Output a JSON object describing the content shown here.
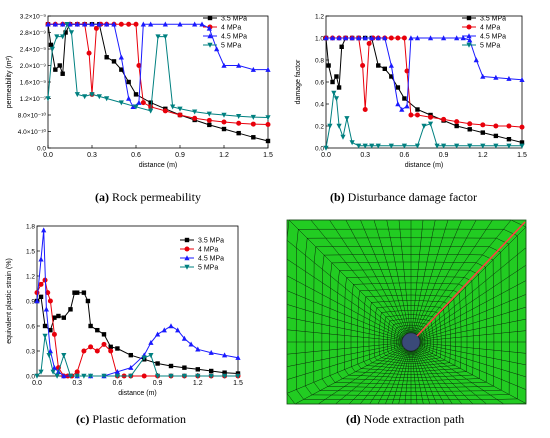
{
  "colors": {
    "3.5 MPa": "#000000",
    "4 MPa": "#e8000b",
    "4.5 MPa": "#1a1aff",
    "5 MPa": "#008080",
    "mesh_green": "#22cc22",
    "mesh_line": "#0a2a0a",
    "path": "#ff4040",
    "hole": "#3a4a78"
  },
  "captions": {
    "a": {
      "label": "(a)",
      "text": " Rock permeability"
    },
    "b": {
      "label": "(b)",
      "text": " Disturbance damage factor"
    },
    "c": {
      "label": "(c)",
      "text": " Plastic deformation"
    },
    "d": {
      "label": "(d)",
      "text": " Node extraction path"
    }
  },
  "chart_data": [
    {
      "id": "a",
      "type": "line",
      "xlabel": "distance (m)",
      "ylabel": "permeability (m²)",
      "xlim": [
        0,
        1.5
      ],
      "ylim": [
        0,
        3.2e-09
      ],
      "xticks": [
        0,
        0.3,
        0.6,
        0.9,
        1.2,
        1.5
      ],
      "xtick_labels": [
        "0.0",
        "0.3",
        "0.6",
        "0.9",
        "1.2",
        "1.5"
      ],
      "yticks": [
        0,
        4e-10,
        8e-10,
        1.2e-09,
        1.6e-09,
        2e-09,
        2.4e-09,
        2.8e-09,
        3.2e-09
      ],
      "ytick_labels": [
        "0.0",
        "4.0×10⁻¹⁰",
        "8.0×10⁻¹⁰",
        "1.2×10⁻⁹",
        "1.6×10⁻⁹",
        "2.0×10⁻⁹",
        "2.4×10⁻⁹",
        "2.8×10⁻⁹",
        "3.2×10⁻⁹"
      ],
      "legend": "top-right",
      "series": [
        {
          "name": "3.5 MPa",
          "marker": "square",
          "x": [
            0,
            0.02,
            0.05,
            0.08,
            0.1,
            0.12,
            0.15,
            0.2,
            0.25,
            0.3,
            0.35,
            0.4,
            0.45,
            0.5,
            0.55,
            0.6,
            0.7,
            0.8,
            0.9,
            1.0,
            1.1,
            1.2,
            1.3,
            1.4,
            1.5
          ],
          "y": [
            3e-09,
            2.5e-09,
            1.9e-09,
            2e-09,
            1.8e-09,
            2.8e-09,
            3e-09,
            3e-09,
            3e-09,
            3e-09,
            3e-09,
            2.2e-09,
            2.1e-09,
            1.9e-09,
            1.6e-09,
            1.3e-09,
            1.1e-09,
            9.5e-10,
            8e-10,
            6.8e-10,
            5.6e-10,
            4.6e-10,
            3.6e-10,
            2.6e-10,
            1.7e-10
          ]
        },
        {
          "name": "4 MPa",
          "marker": "circle",
          "x": [
            0,
            0.05,
            0.1,
            0.15,
            0.2,
            0.25,
            0.28,
            0.3,
            0.33,
            0.36,
            0.4,
            0.45,
            0.5,
            0.55,
            0.6,
            0.62,
            0.65,
            0.7,
            0.8,
            0.9,
            1.0,
            1.1,
            1.2,
            1.3,
            1.4,
            1.5
          ],
          "y": [
            3e-09,
            3e-09,
            3e-09,
            3e-09,
            3e-09,
            3e-09,
            2.3e-09,
            1.3e-09,
            2.9e-09,
            3e-09,
            3e-09,
            3e-09,
            3e-09,
            3e-09,
            3e-09,
            2e-09,
            1.1e-09,
            1e-09,
            9e-10,
            8e-10,
            7.2e-10,
            6.7e-10,
            6.3e-10,
            6e-10,
            5.8e-10,
            5.7e-10
          ]
        },
        {
          "name": "4.5 MPa",
          "marker": "triangle-up",
          "x": [
            0,
            0.05,
            0.1,
            0.15,
            0.2,
            0.25,
            0.3,
            0.35,
            0.4,
            0.45,
            0.5,
            0.55,
            0.58,
            0.62,
            0.65,
            0.7,
            0.8,
            0.9,
            1.0,
            1.05,
            1.1,
            1.15,
            1.2,
            1.3,
            1.4,
            1.5
          ],
          "y": [
            3e-09,
            3e-09,
            3e-09,
            3e-09,
            3e-09,
            3e-09,
            3e-09,
            3e-09,
            3e-09,
            3e-09,
            2.2e-09,
            1.2e-09,
            1e-09,
            1.1e-09,
            3e-09,
            3e-09,
            3e-09,
            3e-09,
            3e-09,
            3e-09,
            2.9e-09,
            2.4e-09,
            2e-09,
            2e-09,
            1.9e-09,
            1.9e-09
          ]
        },
        {
          "name": "5 MPa",
          "marker": "triangle-down",
          "x": [
            0,
            0.03,
            0.06,
            0.1,
            0.13,
            0.16,
            0.2,
            0.25,
            0.3,
            0.35,
            0.4,
            0.5,
            0.6,
            0.7,
            0.75,
            0.8,
            0.85,
            0.9,
            1.0,
            1.1,
            1.2,
            1.3,
            1.4,
            1.5
          ],
          "y": [
            1.2e-09,
            2.4e-09,
            2.7e-09,
            2.7e-09,
            3e-09,
            2.8e-09,
            1.3e-09,
            1.25e-09,
            1.3e-09,
            1.25e-09,
            1.2e-09,
            1.1e-09,
            1e-09,
            9e-10,
            2.7e-09,
            2.7e-09,
            1e-09,
            9.5e-10,
            8.8e-10,
            8.3e-10,
            8e-10,
            7.7e-10,
            7.5e-10,
            7.4e-10
          ]
        }
      ]
    },
    {
      "id": "b",
      "type": "line",
      "xlabel": "distance (m)",
      "ylabel": "damage factor",
      "xlim": [
        0,
        1.5
      ],
      "ylim": [
        0,
        1.2
      ],
      "xticks": [
        0,
        0.3,
        0.6,
        0.9,
        1.2,
        1.5
      ],
      "xtick_labels": [
        "0.0",
        "0.3",
        "0.6",
        "0.9",
        "1.2",
        "1.5"
      ],
      "yticks": [
        0,
        0.2,
        0.4,
        0.6,
        0.8,
        1.0,
        1.2
      ],
      "ytick_labels": [
        "0.0",
        "0.2",
        "0.4",
        "0.6",
        "0.8",
        "1.0",
        "1.2"
      ],
      "legend": "top-right",
      "series": [
        {
          "name": "3.5 MPa",
          "marker": "square",
          "x": [
            0,
            0.02,
            0.05,
            0.08,
            0.1,
            0.12,
            0.15,
            0.2,
            0.25,
            0.3,
            0.35,
            0.4,
            0.45,
            0.5,
            0.55,
            0.6,
            0.7,
            0.8,
            0.9,
            1.0,
            1.1,
            1.2,
            1.3,
            1.4,
            1.5
          ],
          "y": [
            1.0,
            0.75,
            0.6,
            0.65,
            0.55,
            0.92,
            1.0,
            1.0,
            1.0,
            1.0,
            1.0,
            0.75,
            0.72,
            0.65,
            0.55,
            0.45,
            0.35,
            0.3,
            0.25,
            0.2,
            0.17,
            0.14,
            0.11,
            0.08,
            0.05
          ]
        },
        {
          "name": "4 MPa",
          "marker": "circle",
          "x": [
            0,
            0.05,
            0.1,
            0.15,
            0.2,
            0.25,
            0.28,
            0.3,
            0.33,
            0.36,
            0.4,
            0.45,
            0.5,
            0.55,
            0.6,
            0.62,
            0.65,
            0.7,
            0.8,
            0.9,
            1.0,
            1.1,
            1.2,
            1.3,
            1.4,
            1.5
          ],
          "y": [
            1.0,
            1.0,
            1.0,
            1.0,
            1.0,
            1.0,
            0.75,
            0.35,
            0.95,
            1.0,
            1.0,
            1.0,
            1.0,
            1.0,
            1.0,
            0.7,
            0.3,
            0.3,
            0.28,
            0.26,
            0.24,
            0.22,
            0.21,
            0.2,
            0.2,
            0.19
          ]
        },
        {
          "name": "4.5 MPa",
          "marker": "triangle-up",
          "x": [
            0,
            0.05,
            0.1,
            0.15,
            0.2,
            0.25,
            0.3,
            0.35,
            0.4,
            0.45,
            0.5,
            0.55,
            0.58,
            0.62,
            0.65,
            0.7,
            0.8,
            0.9,
            1.0,
            1.05,
            1.1,
            1.15,
            1.2,
            1.3,
            1.4,
            1.5
          ],
          "y": [
            1.0,
            1.0,
            1.0,
            1.0,
            1.0,
            1.0,
            1.0,
            1.0,
            1.0,
            1.0,
            0.75,
            0.4,
            0.35,
            0.38,
            1.0,
            1.0,
            1.0,
            1.0,
            1.0,
            1.0,
            0.98,
            0.8,
            0.65,
            0.64,
            0.63,
            0.62
          ]
        },
        {
          "name": "5 MPa",
          "marker": "triangle-down",
          "x": [
            0,
            0.03,
            0.06,
            0.08,
            0.1,
            0.13,
            0.16,
            0.2,
            0.25,
            0.3,
            0.35,
            0.4,
            0.5,
            0.6,
            0.7,
            0.75,
            0.8,
            0.85,
            0.9,
            1.0,
            1.1,
            1.2,
            1.3,
            1.4,
            1.5
          ],
          "y": [
            0.0,
            0.2,
            0.5,
            0.45,
            0.2,
            0.1,
            0.27,
            0.05,
            0.02,
            0.02,
            0.02,
            0.02,
            0.02,
            0.02,
            0.02,
            0.2,
            0.22,
            0.02,
            0.02,
            0.02,
            0.02,
            0.02,
            0.02,
            0.02,
            0.02
          ]
        }
      ]
    },
    {
      "id": "c",
      "type": "line",
      "xlabel": "distance (m)",
      "ylabel": "equivalent plastic strain (%)",
      "xlim": [
        0,
        1.5
      ],
      "ylim": [
        0,
        1.8
      ],
      "xticks": [
        0,
        0.3,
        0.6,
        0.9,
        1.2,
        1.5
      ],
      "xtick_labels": [
        "0.0",
        "0.3",
        "0.6",
        "0.9",
        "1.2",
        "1.5"
      ],
      "yticks": [
        0,
        0.3,
        0.6,
        0.9,
        1.2,
        1.5,
        1.8
      ],
      "ytick_labels": [
        "0.0",
        "0.3",
        "0.6",
        "0.9",
        "1.2",
        "1.5",
        "1.8"
      ],
      "legend": "top-right",
      "series": [
        {
          "name": "3.5 MPa",
          "marker": "square",
          "x": [
            0,
            0.03,
            0.06,
            0.1,
            0.13,
            0.16,
            0.2,
            0.25,
            0.28,
            0.3,
            0.35,
            0.38,
            0.4,
            0.45,
            0.5,
            0.55,
            0.6,
            0.7,
            0.8,
            0.9,
            1.0,
            1.1,
            1.2,
            1.3,
            1.4,
            1.5
          ],
          "y": [
            0.9,
            0.95,
            0.6,
            0.55,
            0.7,
            0.72,
            0.7,
            0.8,
            1.0,
            1.0,
            1.0,
            0.9,
            0.6,
            0.55,
            0.5,
            0.35,
            0.33,
            0.25,
            0.2,
            0.15,
            0.12,
            0.1,
            0.08,
            0.06,
            0.04,
            0.03
          ]
        },
        {
          "name": "4 MPa",
          "marker": "circle",
          "x": [
            0,
            0.03,
            0.06,
            0.08,
            0.1,
            0.13,
            0.16,
            0.2,
            0.23,
            0.26,
            0.3,
            0.35,
            0.4,
            0.45,
            0.5,
            0.55,
            0.6,
            0.65,
            0.7,
            0.8,
            0.9,
            1.0,
            1.1,
            1.2,
            1.3,
            1.4,
            1.5
          ],
          "y": [
            1.0,
            1.1,
            1.15,
            1.0,
            0.9,
            0.5,
            0.1,
            0.0,
            0.0,
            0.0,
            0.05,
            0.3,
            0.35,
            0.3,
            0.38,
            0.3,
            0.0,
            0.0,
            0.0,
            0.0,
            0.0,
            0.0,
            0.0,
            0.0,
            0.0,
            0.0,
            0.0
          ]
        },
        {
          "name": "4.5 MPa",
          "marker": "triangle-up",
          "x": [
            0,
            0.03,
            0.05,
            0.07,
            0.1,
            0.13,
            0.16,
            0.2,
            0.3,
            0.4,
            0.5,
            0.6,
            0.7,
            0.8,
            0.85,
            0.9,
            0.95,
            1.0,
            1.05,
            1.1,
            1.15,
            1.2,
            1.3,
            1.4,
            1.5
          ],
          "y": [
            0.9,
            1.4,
            1.75,
            0.8,
            0.3,
            0.1,
            0.05,
            0.0,
            0.0,
            0.0,
            0.0,
            0.05,
            0.1,
            0.25,
            0.4,
            0.5,
            0.55,
            0.6,
            0.55,
            0.45,
            0.38,
            0.32,
            0.28,
            0.25,
            0.22
          ]
        },
        {
          "name": "5 MPa",
          "marker": "triangle-down",
          "x": [
            0,
            0.03,
            0.06,
            0.09,
            0.12,
            0.15,
            0.2,
            0.25,
            0.3,
            0.35,
            0.4,
            0.5,
            0.6,
            0.7,
            0.8,
            0.85,
            0.9,
            1.0,
            1.1,
            1.2,
            1.3,
            1.4,
            1.5
          ],
          "y": [
            0.0,
            0.05,
            0.48,
            0.25,
            0.05,
            0.0,
            0.25,
            0.0,
            0.0,
            0.0,
            0.0,
            0.0,
            0.0,
            0.0,
            0.22,
            0.25,
            0.0,
            0.0,
            0.0,
            0.0,
            0.0,
            0.0,
            0.0
          ]
        }
      ]
    }
  ]
}
